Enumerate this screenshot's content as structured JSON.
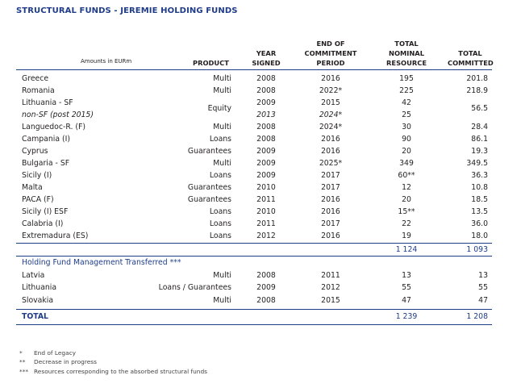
{
  "title": "STRUCTURAL FUNDS - JEREMIE HOLDING FUNDS",
  "headers": {
    "amounts": "Amounts in EURm",
    "product": "PRODUCT",
    "year": [
      "YEAR",
      "SIGNED"
    ],
    "end": [
      "END OF",
      "COMMITMENT",
      "PERIOD"
    ],
    "nominal": [
      "TOTAL",
      "NOMINAL",
      "RESOURCE"
    ],
    "committed": [
      "TOTAL",
      "COMMITTED"
    ]
  },
  "rows": [
    {
      "name": "Greece",
      "product": "Multi",
      "year": "2008",
      "end": "2016",
      "nominal": "195",
      "committed": "201.8"
    },
    {
      "name": "Romania",
      "product": "Multi",
      "year": "2008",
      "end": "2022*",
      "nominal": "225",
      "committed": "218.9"
    },
    {
      "name": "Lithuania - SF",
      "product": "",
      "year": "2009",
      "end": "2015",
      "nominal": "42",
      "committed": ""
    },
    {
      "name": "non-SF (post 2015)",
      "product": "",
      "year": "2013",
      "end": "2024*",
      "nominal": "25",
      "committed": ""
    },
    {
      "name": "Languedoc-R. (F)",
      "product": "Multi",
      "year": "2008",
      "end": "2024*",
      "nominal": "30",
      "committed": "28.4"
    },
    {
      "name": "Campania (I)",
      "product": "Loans",
      "year": "2008",
      "end": "2016",
      "nominal": "90",
      "committed": "86.1"
    },
    {
      "name": "Cyprus",
      "product": "Guarantees",
      "year": "2009",
      "end": "2016",
      "nominal": "20",
      "committed": "19.3"
    },
    {
      "name": "Bulgaria - SF",
      "product": "Multi",
      "year": "2009",
      "end": "2025*",
      "nominal": "349",
      "committed": "349.5"
    },
    {
      "name": "Sicily (I)",
      "product": "Loans",
      "year": "2009",
      "end": "2017",
      "nominal": "60**",
      "committed": "36.3"
    },
    {
      "name": "Malta",
      "product": "Guarantees",
      "year": "2010",
      "end": "2017",
      "nominal": "12",
      "committed": "10.8"
    },
    {
      "name": "PACA (F)",
      "product": "Guarantees",
      "year": "2011",
      "end": "2016",
      "nominal": "20",
      "committed": "18.5"
    },
    {
      "name": "Sicily (I) ESF",
      "product": "Loans",
      "year": "2010",
      "end": "2016",
      "nominal": "15**",
      "committed": "13.5"
    },
    {
      "name": "Calabria (I)",
      "product": "Loans",
      "year": "2011",
      "end": "2017",
      "nominal": "22",
      "committed": "36.0"
    },
    {
      "name": "Extremadura (ES)",
      "product": "Loans",
      "year": "2012",
      "end": "2016",
      "nominal": "19",
      "committed": "18.0"
    }
  ],
  "lithuania_merged": {
    "product": "Equity",
    "committed": "56.5"
  },
  "subtotal": {
    "nominal": "1 124",
    "committed": "1 093"
  },
  "transferred_heading": "Holding Fund Management Transferred ***",
  "transferred_rows": [
    {
      "name": "Latvia",
      "product": "Multi",
      "year": "2008",
      "end": "2011",
      "nominal": "13",
      "committed": "13"
    },
    {
      "name": "Lithuania",
      "product": "Loans / Guarantees",
      "year": "2009",
      "end": "2012",
      "nominal": "55",
      "committed": "55"
    },
    {
      "name": "Slovakia",
      "product": "Multi",
      "year": "2008",
      "end": "2015",
      "nominal": "47",
      "committed": "47"
    }
  ],
  "total": {
    "label": "TOTAL",
    "nominal": "1 239",
    "committed": "1 208"
  },
  "footnotes": [
    {
      "sym": "*",
      "text": "End of Legacy"
    },
    {
      "sym": "**",
      "text": "Decrease in progress"
    },
    {
      "sym": "***",
      "text": "Resources corresponding to the absorbed structural funds"
    }
  ]
}
